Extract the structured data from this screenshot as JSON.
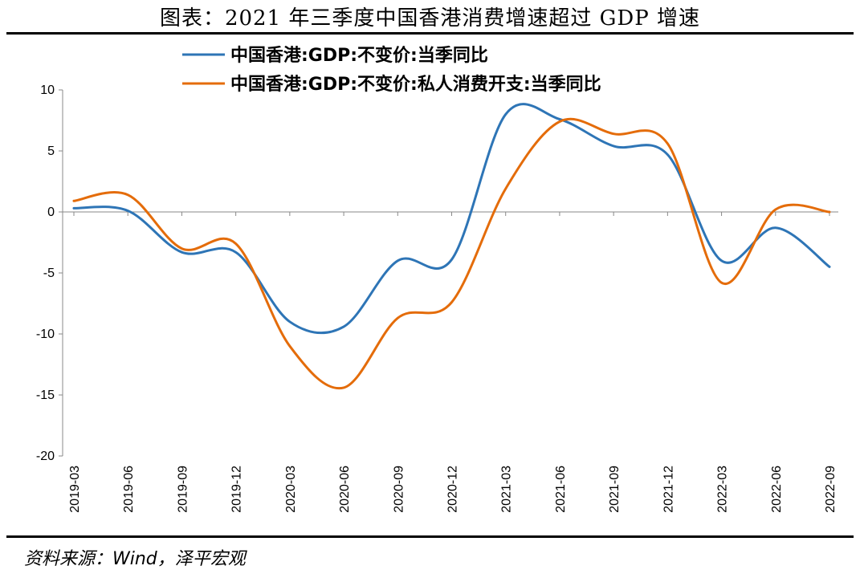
{
  "title": "图表：2021 年三季度中国香港消费增速超过 GDP 增速",
  "source": "资料来源：Wind，泽平宏观",
  "chart_data": {
    "type": "line",
    "categories": [
      "2019-03",
      "2019-06",
      "2019-09",
      "2019-12",
      "2020-03",
      "2020-06",
      "2020-09",
      "2020-12",
      "2021-03",
      "2021-06",
      "2021-09",
      "2021-12",
      "2022-03",
      "2022-06",
      "2022-09"
    ],
    "ylim": [
      -20,
      10
    ],
    "yticks": [
      10,
      5,
      0,
      -5,
      -10,
      -15,
      -20
    ],
    "grid": false,
    "legend_position": "top",
    "series": [
      {
        "name": "中国香港:GDP:不变价:当季同比",
        "color": "#2E75B6",
        "values": [
          0.3,
          0.1,
          -3.3,
          -3.3,
          -9.0,
          -9.4,
          -4.0,
          -3.9,
          8.0,
          7.6,
          5.4,
          4.7,
          -4.0,
          -1.3,
          -4.5
        ]
      },
      {
        "name": "中国香港:GDP:不变价:私人消费开支:当季同比",
        "color": "#E46C0A",
        "values": [
          0.9,
          1.4,
          -3.0,
          -2.6,
          -11.0,
          -14.4,
          -8.7,
          -7.4,
          1.9,
          7.4,
          6.4,
          5.6,
          -5.8,
          0.2,
          0.0
        ]
      }
    ]
  }
}
